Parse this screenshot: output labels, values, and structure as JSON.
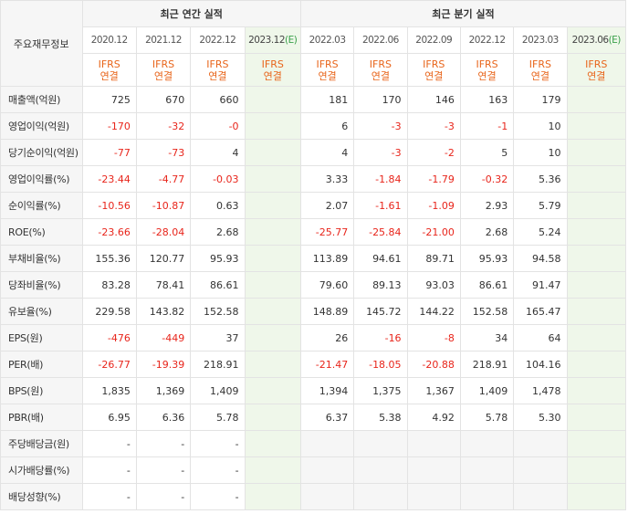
{
  "header": {
    "corner_label": "주요재무정보",
    "annual_title": "최근 연간 실적",
    "quarter_title": "최근 분기 실적"
  },
  "columns": [
    {
      "date": "2020.12",
      "est": false,
      "ifrs1": "IFRS",
      "ifrs2": "연결"
    },
    {
      "date": "2021.12",
      "est": false,
      "ifrs1": "IFRS",
      "ifrs2": "연결"
    },
    {
      "date": "2022.12",
      "est": false,
      "ifrs1": "IFRS",
      "ifrs2": "연결"
    },
    {
      "date": "2023.12",
      "est": true,
      "est_mark": "(E)",
      "ifrs1": "IFRS",
      "ifrs2": "연결"
    },
    {
      "date": "2022.03",
      "est": false,
      "ifrs1": "IFRS",
      "ifrs2": "연결"
    },
    {
      "date": "2022.06",
      "est": false,
      "ifrs1": "IFRS",
      "ifrs2": "연결"
    },
    {
      "date": "2022.09",
      "est": false,
      "ifrs1": "IFRS",
      "ifrs2": "연결"
    },
    {
      "date": "2022.12",
      "est": false,
      "ifrs1": "IFRS",
      "ifrs2": "연결"
    },
    {
      "date": "2023.03",
      "est": false,
      "ifrs1": "IFRS",
      "ifrs2": "연결"
    },
    {
      "date": "2023.06",
      "est": true,
      "est_mark": "(E)",
      "ifrs1": "IFRS",
      "ifrs2": "연결"
    }
  ],
  "rows": [
    {
      "label": "매출액(억원)",
      "values": [
        "725",
        "670",
        "660",
        "",
        "181",
        "170",
        "146",
        "163",
        "179",
        ""
      ]
    },
    {
      "label": "영업이익(억원)",
      "values": [
        "-170",
        "-32",
        "-0",
        "",
        "6",
        "-3",
        "-3",
        "-1",
        "10",
        ""
      ]
    },
    {
      "label": "당기순이익(억원)",
      "values": [
        "-77",
        "-73",
        "4",
        "",
        "4",
        "-3",
        "-2",
        "5",
        "10",
        ""
      ]
    },
    {
      "label": "영업이익률(%)",
      "values": [
        "-23.44",
        "-4.77",
        "-0.03",
        "",
        "3.33",
        "-1.84",
        "-1.79",
        "-0.32",
        "5.36",
        ""
      ]
    },
    {
      "label": "순이익률(%)",
      "values": [
        "-10.56",
        "-10.87",
        "0.63",
        "",
        "2.07",
        "-1.61",
        "-1.09",
        "2.93",
        "5.79",
        ""
      ]
    },
    {
      "label": "ROE(%)",
      "values": [
        "-23.66",
        "-28.04",
        "2.68",
        "",
        "-25.77",
        "-25.84",
        "-21.00",
        "2.68",
        "5.24",
        ""
      ]
    },
    {
      "label": "부채비율(%)",
      "values": [
        "155.36",
        "120.77",
        "95.93",
        "",
        "113.89",
        "94.61",
        "89.71",
        "95.93",
        "94.58",
        ""
      ]
    },
    {
      "label": "당좌비율(%)",
      "values": [
        "83.28",
        "78.41",
        "86.61",
        "",
        "79.60",
        "89.13",
        "93.03",
        "86.61",
        "91.47",
        ""
      ]
    },
    {
      "label": "유보율(%)",
      "values": [
        "229.58",
        "143.82",
        "152.58",
        "",
        "148.89",
        "145.72",
        "144.22",
        "152.58",
        "165.47",
        ""
      ]
    },
    {
      "label": "EPS(원)",
      "values": [
        "-476",
        "-449",
        "37",
        "",
        "26",
        "-16",
        "-8",
        "34",
        "64",
        ""
      ]
    },
    {
      "label": "PER(배)",
      "values": [
        "-26.77",
        "-19.39",
        "218.91",
        "",
        "-21.47",
        "-18.05",
        "-20.88",
        "218.91",
        "104.16",
        ""
      ]
    },
    {
      "label": "BPS(원)",
      "values": [
        "1,835",
        "1,369",
        "1,409",
        "",
        "1,394",
        "1,375",
        "1,367",
        "1,409",
        "1,478",
        ""
      ]
    },
    {
      "label": "PBR(배)",
      "values": [
        "6.95",
        "6.36",
        "5.78",
        "",
        "6.37",
        "5.38",
        "4.92",
        "5.78",
        "5.30",
        ""
      ]
    },
    {
      "label": "주당배당금(원)",
      "values": [
        "-",
        "-",
        "-",
        "",
        "",
        "",
        "",
        "",
        "",
        ""
      ]
    },
    {
      "label": "시가배당률(%)",
      "values": [
        "-",
        "-",
        "-",
        "",
        "",
        "",
        "",
        "",
        "",
        ""
      ]
    },
    {
      "label": "배당성향(%)",
      "values": [
        "-",
        "-",
        "-",
        "",
        "",
        "",
        "",
        "",
        "",
        ""
      ]
    }
  ],
  "colors": {
    "negative": "#e8251b",
    "ifrs": "#e8651b",
    "estimate_bg": "#eff7ea",
    "estimate_mark": "#3aa04a",
    "label_bg": "#f6f6f6"
  }
}
